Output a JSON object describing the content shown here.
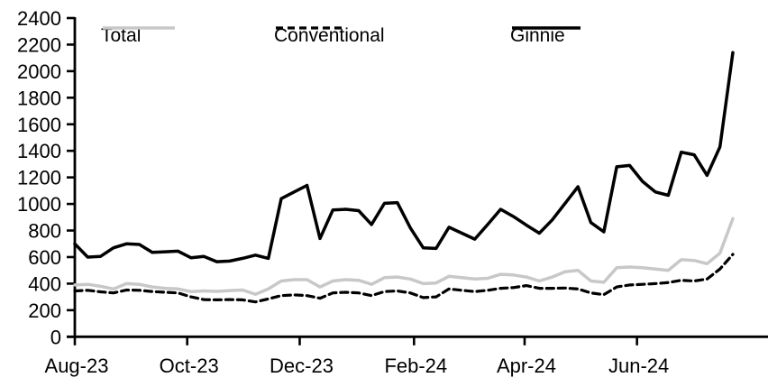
{
  "chart_data": {
    "type": "line",
    "title": "",
    "xlabel": "",
    "ylabel": "",
    "ylim": [
      0,
      2400
    ],
    "yticks": [
      0,
      200,
      400,
      600,
      800,
      1000,
      1200,
      1400,
      1600,
      1800,
      2000,
      2200,
      2400
    ],
    "grid": false,
    "legend_position": "top",
    "background": "#ffffff",
    "axis_color": "#000000",
    "x_count": 52,
    "x_unit": "week",
    "xticks": [
      {
        "label": "Aug-23",
        "index": 0
      },
      {
        "label": "Oct-23",
        "index": 8.71
      },
      {
        "label": "Dec-23",
        "index": 17.43
      },
      {
        "label": "Feb-24",
        "index": 26.29
      },
      {
        "label": "Apr-24",
        "index": 34.86
      },
      {
        "label": "Jun-24",
        "index": 43.57
      }
    ],
    "series": [
      {
        "name": "Total",
        "color": "#c8c8c8",
        "style": "solid",
        "width": 3.5,
        "values": [
          390,
          395,
          380,
          360,
          400,
          395,
          375,
          365,
          360,
          340,
          345,
          342,
          348,
          352,
          320,
          360,
          420,
          430,
          430,
          375,
          420,
          430,
          425,
          395,
          445,
          450,
          435,
          400,
          405,
          455,
          445,
          435,
          440,
          470,
          465,
          450,
          420,
          450,
          490,
          500,
          420,
          410,
          520,
          525,
          520,
          510,
          500,
          580,
          575,
          550,
          630,
          890
        ]
      },
      {
        "name": "Conventional",
        "color": "#000000",
        "style": "dashed",
        "width": 3.2,
        "dash": [
          8,
          5
        ],
        "values": [
          345,
          350,
          338,
          330,
          352,
          350,
          340,
          335,
          330,
          300,
          280,
          278,
          280,
          278,
          262,
          285,
          310,
          315,
          310,
          290,
          330,
          335,
          330,
          310,
          340,
          345,
          330,
          295,
          300,
          360,
          350,
          340,
          350,
          365,
          370,
          385,
          365,
          365,
          367,
          360,
          330,
          317,
          375,
          390,
          395,
          400,
          408,
          425,
          420,
          435,
          510,
          620
        ]
      },
      {
        "name": "Ginnie",
        "color": "#000000",
        "style": "solid",
        "width": 3.5,
        "values": [
          700,
          600,
          605,
          670,
          700,
          695,
          635,
          640,
          645,
          595,
          605,
          565,
          570,
          590,
          615,
          590,
          1040,
          1090,
          1140,
          740,
          955,
          960,
          950,
          845,
          1005,
          1010,
          820,
          670,
          665,
          825,
          780,
          735,
          845,
          960,
          905,
          840,
          780,
          880,
          1005,
          1130,
          860,
          790,
          1280,
          1290,
          1170,
          1090,
          1065,
          1390,
          1370,
          1215,
          1430,
          2140
        ]
      }
    ]
  },
  "legend": {
    "total_label": "Total",
    "conventional_label": "Conventional",
    "ginnie_label": "Ginnie"
  }
}
